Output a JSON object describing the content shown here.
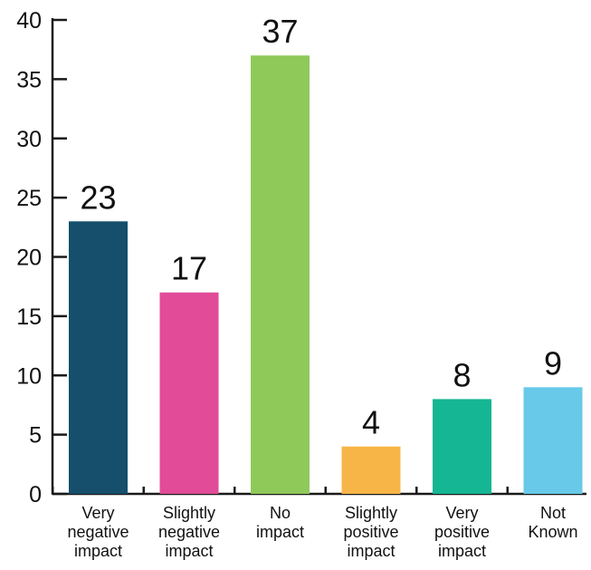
{
  "chart_data": {
    "type": "bar",
    "title": "",
    "xlabel": "",
    "ylabel": "",
    "categories": [
      [
        "Very",
        "negative",
        "impact"
      ],
      [
        "Slightly",
        "negative",
        "impact"
      ],
      [
        "No",
        "impact"
      ],
      [
        "Slightly",
        "positive",
        "impact"
      ],
      [
        "Very",
        "positive",
        "impact"
      ],
      [
        "Not",
        "Known"
      ]
    ],
    "values": [
      23,
      17,
      37,
      4,
      8,
      9
    ],
    "data_labels": [
      "23",
      "17",
      "37",
      "4",
      "8",
      "9"
    ],
    "colors": [
      "#154f6c",
      "#e14b98",
      "#8ec95a",
      "#f8b547",
      "#14b693",
      "#68c9e8"
    ],
    "ylim": [
      0,
      40
    ],
    "yticks": [
      0,
      5,
      10,
      15,
      20,
      25,
      30,
      35,
      40
    ],
    "grid": false,
    "legend": "none"
  }
}
